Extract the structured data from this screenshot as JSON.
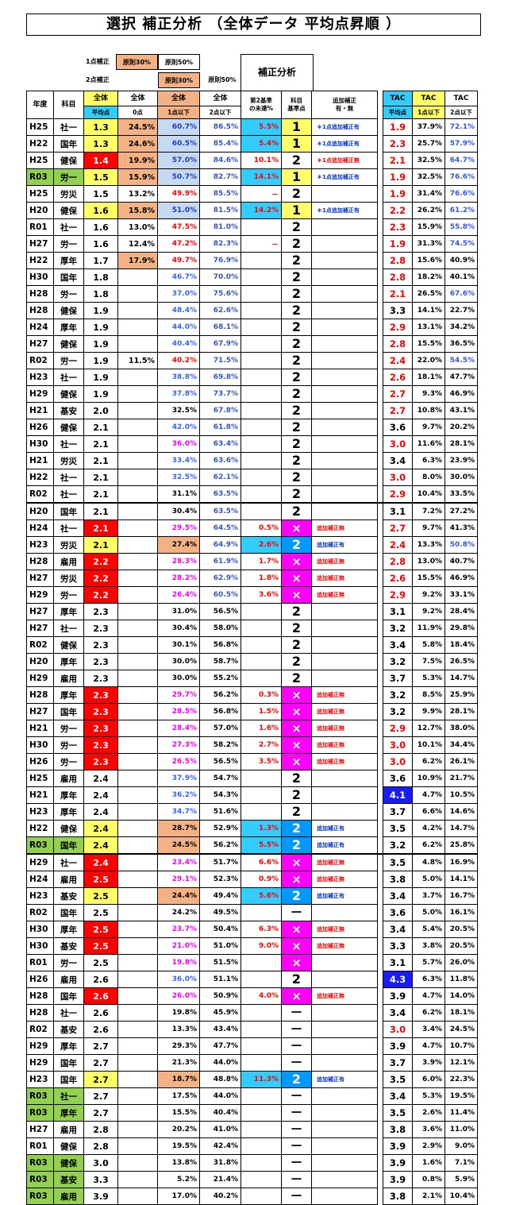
{
  "title": "選択 補正分析 （全体データ 平均点昇順 ）",
  "legend": {
    "row1_label": "1点補正",
    "row1_box1": "原則30%",
    "row1_box2": "原則50%",
    "row2_label": "2点補正",
    "row2_box1": "原則30%",
    "row2_box2": "原則50%",
    "analysis": "補正分析"
  },
  "headers": {
    "year": "年度",
    "subject": "科目",
    "avg_top": "全体",
    "avg_sub": "平均点",
    "zero_top": "全体",
    "zero_sub": "0点",
    "p1_top": "全体",
    "p1_sub": "1点以下",
    "p2_top": "全体",
    "p2_sub": "2点以下",
    "miss": "第2基準\nの未達%",
    "kijun": "科目\n基準点",
    "note": "追加補正\n有・無",
    "tac": "TAC",
    "tac_avg_sub": "平均点",
    "tac_p1_sub": "1点以下",
    "tac_p2_sub": "2点以下"
  },
  "colors": {
    "yellow": "#ffff66",
    "red": "#ff0000",
    "orange": "#f4b183",
    "lblue": "#c5d9f1",
    "cyan": "#33ccff",
    "magenta": "#ff00ff",
    "green": "#92d050",
    "blue": "#0033ff",
    "navy": "#0000cc",
    "pink": "#ff00ff",
    "darkred": "#ff0000"
  },
  "rows": [
    [
      "H25",
      "社一",
      "1.3",
      "24.5%",
      "60.7%",
      "86.5%",
      "5.5%",
      "1",
      "＊1点追加補正有",
      "1.9",
      "37.9%",
      "72.1%"
    ],
    [
      "H22",
      "国年",
      "1.3",
      "24.6%",
      "60.5%",
      "85.4%",
      "5.4%",
      "1",
      "＊1点追加補正有",
      "2.3",
      "25.7%",
      "57.9%"
    ],
    [
      "H25",
      "健保",
      "1.4",
      "19.9%",
      "57.0%",
      "84.6%",
      "10.1%",
      "2",
      "＊1点追加補正無",
      "2.1",
      "32.5%",
      "64.7%"
    ],
    [
      "R03",
      "労一",
      "1.5",
      "15.9%",
      "50.7%",
      "82.7%",
      "14.1%",
      "1",
      "＊1点追加補正有",
      "1.9",
      "32.5%",
      "76.6%"
    ],
    [
      "H25",
      "労災",
      "1.5",
      "13.2%",
      "49.9%",
      "85.5%",
      "－",
      "2",
      "",
      "1.9",
      "31.4%",
      "76.6%"
    ],
    [
      "H20",
      "健保",
      "1.6",
      "15.8%",
      "51.0%",
      "81.5%",
      "14.2%",
      "1",
      "＊1点追加補正有",
      "2.2",
      "26.2%",
      "61.2%"
    ],
    [
      "R01",
      "社一",
      "1.6",
      "13.0%",
      "47.5%",
      "81.0%",
      "",
      "2",
      "",
      "2.3",
      "15.9%",
      "55.8%"
    ],
    [
      "H27",
      "労一",
      "1.6",
      "12.4%",
      "47.2%",
      "82.3%",
      "－",
      "2",
      "",
      "1.9",
      "31.3%",
      "74.5%"
    ],
    [
      "H22",
      "厚年",
      "1.7",
      "17.9%",
      "49.7%",
      "76.9%",
      "",
      "2",
      "",
      "2.8",
      "15.6%",
      "40.9%"
    ],
    [
      "H30",
      "国年",
      "1.8",
      "",
      "46.7%",
      "70.0%",
      "",
      "2",
      "",
      "2.8",
      "18.2%",
      "40.1%"
    ],
    [
      "H28",
      "労一",
      "1.8",
      "",
      "37.0%",
      "75.6%",
      "",
      "2",
      "",
      "2.1",
      "26.5%",
      "67.6%"
    ],
    [
      "H28",
      "健保",
      "1.9",
      "",
      "48.4%",
      "62.6%",
      "",
      "2",
      "",
      "3.3",
      "14.1%",
      "22.7%"
    ],
    [
      "H24",
      "厚年",
      "1.9",
      "",
      "44.0%",
      "68.1%",
      "",
      "2",
      "",
      "2.9",
      "13.1%",
      "34.2%"
    ],
    [
      "H27",
      "健保",
      "1.9",
      "",
      "40.4%",
      "67.9%",
      "",
      "2",
      "",
      "2.8",
      "15.5%",
      "36.5%"
    ],
    [
      "R02",
      "労一",
      "1.9",
      "11.5%",
      "40.2%",
      "71.5%",
      "",
      "2",
      "",
      "2.4",
      "22.0%",
      "54.5%"
    ],
    [
      "H23",
      "社一",
      "1.9",
      "",
      "38.8%",
      "69.8%",
      "",
      "2",
      "",
      "2.6",
      "18.1%",
      "47.7%"
    ],
    [
      "H29",
      "健保",
      "1.9",
      "",
      "37.8%",
      "73.7%",
      "",
      "2",
      "",
      "2.7",
      "9.3%",
      "46.9%"
    ],
    [
      "H21",
      "基安",
      "2.0",
      "",
      "32.5%",
      "67.8%",
      "",
      "2",
      "",
      "2.7",
      "10.8%",
      "43.1%"
    ],
    [
      "H26",
      "健保",
      "2.1",
      "",
      "42.0%",
      "61.8%",
      "",
      "2",
      "",
      "3.6",
      "9.7%",
      "20.2%"
    ],
    [
      "H30",
      "社一",
      "2.1",
      "",
      "36.0%",
      "63.4%",
      "",
      "2",
      "",
      "3.0",
      "11.6%",
      "28.1%"
    ],
    [
      "H21",
      "労災",
      "2.1",
      "",
      "33.4%",
      "63.6%",
      "",
      "2",
      "",
      "3.4",
      "6.3%",
      "23.9%"
    ],
    [
      "H22",
      "社一",
      "2.1",
      "",
      "32.5%",
      "62.1%",
      "",
      "2",
      "",
      "3.0",
      "8.0%",
      "30.0%"
    ],
    [
      "R02",
      "社一",
      "2.1",
      "",
      "31.1%",
      "63.5%",
      "",
      "2",
      "",
      "2.9",
      "10.4%",
      "33.5%"
    ],
    [
      "H20",
      "国年",
      "2.1",
      "",
      "30.4%",
      "63.5%",
      "",
      "2",
      "",
      "3.1",
      "7.2%",
      "27.2%"
    ],
    [
      "H24",
      "社一",
      "2.1",
      "",
      "29.5%",
      "64.5%",
      "0.5%",
      "×",
      "追加補正無",
      "2.7",
      "9.7%",
      "41.3%"
    ],
    [
      "H23",
      "労災",
      "2.1",
      "",
      "27.4%",
      "64.9%",
      "2.6%",
      "2",
      "追加補正有",
      "2.4",
      "13.3%",
      "50.8%"
    ],
    [
      "H28",
      "雇用",
      "2.2",
      "",
      "28.3%",
      "61.9%",
      "1.7%",
      "×",
      "追加補正無",
      "2.8",
      "13.0%",
      "40.7%"
    ],
    [
      "H27",
      "労災",
      "2.2",
      "",
      "28.2%",
      "62.9%",
      "1.8%",
      "×",
      "追加補正無",
      "2.6",
      "15.5%",
      "46.9%"
    ],
    [
      "H29",
      "労一",
      "2.2",
      "",
      "26.4%",
      "60.5%",
      "3.6%",
      "×",
      "追加補正無",
      "2.9",
      "9.2%",
      "33.1%"
    ],
    [
      "H27",
      "厚年",
      "2.3",
      "",
      "31.0%",
      "56.5%",
      "",
      "2",
      "",
      "3.1",
      "9.2%",
      "28.4%"
    ],
    [
      "H27",
      "社一",
      "2.3",
      "",
      "30.4%",
      "58.0%",
      "",
      "2",
      "",
      "3.2",
      "11.9%",
      "29.8%"
    ],
    [
      "R02",
      "健保",
      "2.3",
      "",
      "30.1%",
      "56.8%",
      "",
      "2",
      "",
      "3.4",
      "5.8%",
      "18.4%"
    ],
    [
      "H20",
      "厚年",
      "2.3",
      "",
      "30.0%",
      "58.7%",
      "",
      "2",
      "",
      "3.2",
      "7.5%",
      "26.5%"
    ],
    [
      "H29",
      "雇用",
      "2.3",
      "",
      "30.0%",
      "55.2%",
      "",
      "2",
      "",
      "3.7",
      "5.3%",
      "14.7%"
    ],
    [
      "H28",
      "厚年",
      "2.3",
      "",
      "29.7%",
      "56.2%",
      "0.3%",
      "×",
      "追加補正無",
      "3.2",
      "8.5%",
      "25.9%"
    ],
    [
      "H27",
      "国年",
      "2.3",
      "",
      "28.5%",
      "56.8%",
      "1.5%",
      "×",
      "追加補正無",
      "3.2",
      "9.9%",
      "28.1%"
    ],
    [
      "H21",
      "労一",
      "2.3",
      "",
      "28.4%",
      "57.0%",
      "1.6%",
      "×",
      "追加補正無",
      "2.9",
      "12.7%",
      "38.0%"
    ],
    [
      "H30",
      "労一",
      "2.3",
      "",
      "27.3%",
      "58.2%",
      "2.7%",
      "×",
      "追加補正無",
      "3.0",
      "10.1%",
      "34.4%"
    ],
    [
      "H26",
      "労一",
      "2.3",
      "",
      "26.5%",
      "56.5%",
      "3.5%",
      "×",
      "追加補正無",
      "3.0",
      "6.2%",
      "26.1%"
    ],
    [
      "H25",
      "雇用",
      "2.4",
      "",
      "37.9%",
      "54.7%",
      "",
      "2",
      "",
      "3.6",
      "10.9%",
      "21.7%"
    ],
    [
      "H21",
      "厚年",
      "2.4",
      "",
      "36.2%",
      "54.3%",
      "",
      "2",
      "",
      "4.1",
      "4.7%",
      "10.5%"
    ],
    [
      "H23",
      "厚年",
      "2.4",
      "",
      "34.7%",
      "51.6%",
      "",
      "2",
      "",
      "3.7",
      "6.6%",
      "14.6%"
    ],
    [
      "H22",
      "健保",
      "2.4",
      "",
      "28.7%",
      "52.9%",
      "1.3%",
      "2",
      "追加補正有",
      "3.5",
      "4.2%",
      "14.7%"
    ],
    [
      "R03",
      "国年",
      "2.4",
      "",
      "24.5%",
      "56.2%",
      "5.5%",
      "2",
      "追加補正有",
      "3.2",
      "6.2%",
      "25.8%"
    ],
    [
      "H29",
      "社一",
      "2.4",
      "",
      "23.4%",
      "51.7%",
      "6.6%",
      "×",
      "追加補正無",
      "3.5",
      "4.8%",
      "16.9%"
    ],
    [
      "H24",
      "雇用",
      "2.5",
      "",
      "29.1%",
      "52.3%",
      "0.9%",
      "×",
      "追加補正無",
      "3.8",
      "5.0%",
      "14.1%"
    ],
    [
      "H23",
      "基安",
      "2.5",
      "",
      "24.4%",
      "49.4%",
      "5.6%",
      "2",
      "追加補正有",
      "3.4",
      "3.7%",
      "16.7%"
    ],
    [
      "R02",
      "国年",
      "2.5",
      "",
      "24.2%",
      "49.5%",
      "",
      "－",
      "",
      "3.6",
      "5.0%",
      "16.1%"
    ],
    [
      "H30",
      "厚年",
      "2.5",
      "",
      "23.7%",
      "50.4%",
      "6.3%",
      "×",
      "追加補正無",
      "3.4",
      "5.4%",
      "20.5%"
    ],
    [
      "H30",
      "基安",
      "2.5",
      "",
      "21.0%",
      "51.0%",
      "9.0%",
      "×",
      "追加補正無",
      "3.3",
      "3.8%",
      "20.5%"
    ],
    [
      "R01",
      "労一",
      "2.5",
      "",
      "19.8%",
      "51.5%",
      "",
      "×",
      "",
      "3.1",
      "5.7%",
      "26.0%"
    ],
    [
      "H26",
      "雇用",
      "2.6",
      "",
      "36.0%",
      "51.1%",
      "",
      "2",
      "",
      "4.3",
      "6.3%",
      "11.8%"
    ],
    [
      "H28",
      "国年",
      "2.6",
      "",
      "26.0%",
      "50.9%",
      "4.0%",
      "×",
      "追加補正無",
      "3.9",
      "4.7%",
      "14.0%"
    ],
    [
      "H28",
      "社一",
      "2.6",
      "",
      "19.8%",
      "45.9%",
      "",
      "－",
      "",
      "3.4",
      "6.2%",
      "18.1%"
    ],
    [
      "R02",
      "基安",
      "2.6",
      "",
      "13.3%",
      "43.4%",
      "",
      "－",
      "",
      "3.0",
      "3.4%",
      "24.5%"
    ],
    [
      "H29",
      "厚年",
      "2.7",
      "",
      "29.3%",
      "47.7%",
      "",
      "－",
      "",
      "3.9",
      "4.7%",
      "10.7%"
    ],
    [
      "H29",
      "国年",
      "2.7",
      "",
      "21.3%",
      "44.0%",
      "",
      "－",
      "",
      "3.7",
      "3.9%",
      "12.1%"
    ],
    [
      "H23",
      "国年",
      "2.7",
      "",
      "18.7%",
      "48.8%",
      "11.3%",
      "2",
      "追加補正有",
      "3.5",
      "6.0%",
      "22.3%"
    ],
    [
      "R03",
      "社一",
      "2.7",
      "",
      "17.5%",
      "44.0%",
      "",
      "－",
      "",
      "3.4",
      "5.3%",
      "19.5%"
    ],
    [
      "R03",
      "厚年",
      "2.7",
      "",
      "15.5%",
      "40.4%",
      "",
      "－",
      "",
      "3.5",
      "2.6%",
      "11.4%"
    ],
    [
      "H27",
      "雇用",
      "2.8",
      "",
      "20.2%",
      "41.0%",
      "",
      "－",
      "",
      "3.8",
      "3.6%",
      "11.0%"
    ],
    [
      "R01",
      "健保",
      "2.8",
      "",
      "19.5%",
      "42.4%",
      "",
      "－",
      "",
      "3.9",
      "2.9%",
      "9.0%"
    ],
    [
      "R03",
      "健保",
      "3.0",
      "",
      "13.8%",
      "31.8%",
      "",
      "－",
      "",
      "3.9",
      "1.6%",
      "7.1%"
    ],
    [
      "R03",
      "基安",
      "3.3",
      "",
      "5.2%",
      "21.4%",
      "",
      "－",
      "",
      "3.9",
      "0.8%",
      "5.9%"
    ],
    [
      "R03",
      "雇用",
      "3.9",
      "",
      "17.0%",
      "40.2%",
      "",
      "－",
      "",
      "3.8",
      "2.1%",
      "10.4%"
    ]
  ]
}
